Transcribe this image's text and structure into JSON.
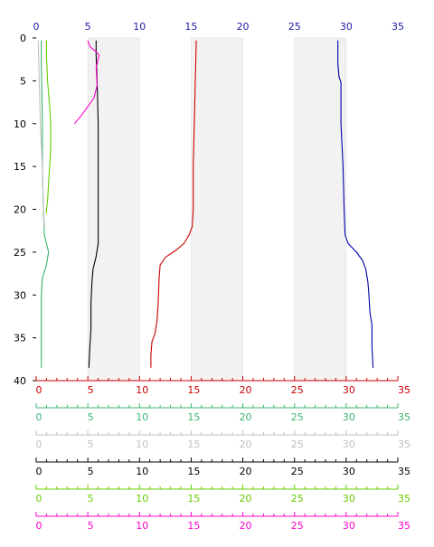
{
  "chart_data": {
    "type": "line",
    "orientation": "vertical-profile",
    "title": "",
    "y_axis": {
      "label": "",
      "range": [
        0,
        40
      ],
      "inverted": true,
      "ticks": [
        0,
        5,
        10,
        15,
        20,
        25,
        30,
        35,
        40
      ],
      "tick_labels": [
        "0",
        "5",
        "10",
        "15",
        "20",
        "25",
        "30",
        "35",
        "40"
      ]
    },
    "top_axis": {
      "color": "#1a1aa8",
      "range": [
        0,
        35
      ],
      "ticks": [
        0,
        5,
        10,
        15,
        20,
        25,
        30,
        35
      ],
      "tick_labels": [
        "0",
        "5",
        "10",
        "15",
        "20",
        "25",
        "30",
        "35"
      ]
    },
    "bottom_axes": [
      {
        "color": "#cc0000",
        "range": [
          0,
          35
        ],
        "ticks": [
          0,
          5,
          10,
          15,
          20,
          25,
          30,
          35
        ],
        "tick_labels": [
          "0",
          "5",
          "10",
          "15",
          "20",
          "25",
          "30",
          "35"
        ]
      },
      {
        "color": "#3cb371",
        "range": [
          0,
          35
        ],
        "ticks": [
          0,
          5,
          10,
          15,
          20,
          25,
          30,
          35
        ],
        "tick_labels": [
          "0",
          "5",
          "10",
          "15",
          "20",
          "25",
          "30",
          "35"
        ]
      },
      {
        "color": "#c0c0c0",
        "range": [
          0,
          35
        ],
        "ticks": [
          0,
          5,
          10,
          15,
          20,
          25,
          30,
          35
        ],
        "tick_labels": [
          "0",
          "5",
          "10",
          "15",
          "20",
          "25",
          "30",
          "35"
        ]
      },
      {
        "color": "#000000",
        "range": [
          0,
          35
        ],
        "ticks": [
          0,
          5,
          10,
          15,
          20,
          25,
          30,
          35
        ],
        "tick_labels": [
          "0",
          "5",
          "10",
          "15",
          "20",
          "25",
          "30",
          "35"
        ]
      },
      {
        "color": "#66cc00",
        "range": [
          0,
          35
        ],
        "ticks": [
          0,
          5,
          10,
          15,
          20,
          25,
          30,
          35
        ],
        "tick_labels": [
          "0",
          "5",
          "10",
          "15",
          "20",
          "25",
          "30",
          "35"
        ]
      },
      {
        "color": "#ff00cc",
        "range": [
          0,
          35
        ],
        "ticks": [
          0,
          5,
          10,
          15,
          20,
          25,
          30,
          35
        ],
        "tick_labels": [
          "0",
          "5",
          "10",
          "15",
          "20",
          "25",
          "30",
          "35"
        ]
      }
    ],
    "shaded_bands_x": [
      [
        5,
        10
      ],
      [
        15,
        20
      ],
      [
        25,
        30
      ]
    ],
    "band_color": "#f2f2f2",
    "grid": false,
    "series": [
      {
        "color": "#0000aa",
        "points": [
          [
            29.2,
            0.3
          ],
          [
            29.2,
            3
          ],
          [
            29.3,
            4.5
          ],
          [
            29.5,
            5.2
          ],
          [
            29.5,
            10
          ],
          [
            29.7,
            15
          ],
          [
            29.8,
            20
          ],
          [
            29.9,
            23
          ],
          [
            30.2,
            24
          ],
          [
            31.0,
            25
          ],
          [
            31.6,
            26
          ],
          [
            31.9,
            27
          ],
          [
            32.1,
            28.5
          ],
          [
            32.2,
            30
          ],
          [
            32.3,
            32
          ],
          [
            32.5,
            33.5
          ],
          [
            32.5,
            36
          ],
          [
            32.6,
            38.5
          ]
        ]
      },
      {
        "color": "#cc0000",
        "points": [
          [
            15.5,
            0.3
          ],
          [
            15.4,
            5
          ],
          [
            15.3,
            10
          ],
          [
            15.2,
            15
          ],
          [
            15.2,
            20
          ],
          [
            15.1,
            22
          ],
          [
            14.8,
            23
          ],
          [
            14.3,
            24
          ],
          [
            13.5,
            24.8
          ],
          [
            12.5,
            25.6
          ],
          [
            12.0,
            26.5
          ],
          [
            11.9,
            28
          ],
          [
            11.8,
            31
          ],
          [
            11.7,
            33
          ],
          [
            11.5,
            34.5
          ],
          [
            11.2,
            35.5
          ],
          [
            11.1,
            37
          ],
          [
            11.1,
            38.5
          ]
        ]
      },
      {
        "color": "#000000",
        "points": [
          [
            5.8,
            0.3
          ],
          [
            5.8,
            2
          ],
          [
            5.9,
            5
          ],
          [
            6.0,
            10
          ],
          [
            6.0,
            15
          ],
          [
            6.0,
            20
          ],
          [
            6.0,
            24
          ],
          [
            5.8,
            25.5
          ],
          [
            5.5,
            27
          ],
          [
            5.4,
            28.5
          ],
          [
            5.3,
            31
          ],
          [
            5.3,
            34
          ],
          [
            5.2,
            36
          ],
          [
            5.1,
            38.5
          ]
        ]
      },
      {
        "color": "#66cc00",
        "points": [
          [
            1.0,
            0.3
          ],
          [
            1.0,
            2
          ],
          [
            1.1,
            5
          ],
          [
            1.3,
            8
          ],
          [
            1.4,
            10
          ],
          [
            1.4,
            13
          ],
          [
            1.3,
            15
          ],
          [
            1.2,
            17
          ],
          [
            1.1,
            19
          ],
          [
            1.0,
            20
          ],
          [
            1.0,
            20.5
          ]
        ]
      },
      {
        "color": "#3cb371",
        "points": [
          [
            0.5,
            0.3
          ],
          [
            0.5,
            3
          ],
          [
            0.6,
            10
          ],
          [
            0.6,
            15
          ],
          [
            0.7,
            20
          ],
          [
            0.8,
            23
          ],
          [
            1.2,
            25
          ],
          [
            1.0,
            26.5
          ],
          [
            0.6,
            28
          ],
          [
            0.5,
            30
          ],
          [
            0.5,
            33
          ],
          [
            0.5,
            36
          ],
          [
            0.5,
            38.5
          ]
        ]
      },
      {
        "color": "#c0c0c0",
        "points": [
          [
            0.2,
            0.3
          ],
          [
            0.3,
            5
          ],
          [
            0.4,
            10
          ],
          [
            0.6,
            15
          ],
          [
            0.7,
            20
          ],
          [
            0.8,
            22
          ]
        ]
      },
      {
        "color": "#ff00cc",
        "points": [
          [
            5.0,
            0.3
          ],
          [
            5.2,
            1
          ],
          [
            5.7,
            1.5
          ],
          [
            6.1,
            2
          ],
          [
            5.8,
            3.5
          ],
          [
            5.9,
            5.5
          ],
          [
            5.6,
            7
          ],
          [
            5.0,
            8
          ],
          [
            4.4,
            9
          ],
          [
            3.7,
            10
          ]
        ]
      }
    ]
  }
}
